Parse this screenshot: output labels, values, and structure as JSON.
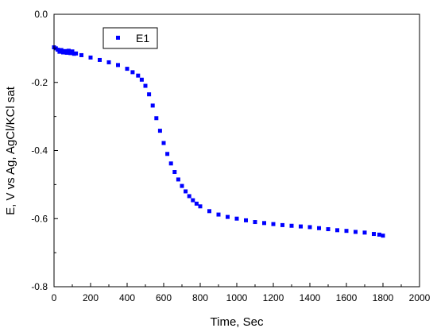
{
  "chart_data": {
    "type": "scatter",
    "title": "",
    "xlabel": "Time, Sec",
    "ylabel": "E, V vs Ag, AgCl/KCl sat",
    "xlim": [
      0,
      2000
    ],
    "ylim": [
      -0.8,
      0.0
    ],
    "x_ticks": [
      0,
      200,
      400,
      600,
      800,
      1000,
      1200,
      1400,
      1600,
      1800,
      2000
    ],
    "x_tick_labels": [
      "0",
      "200",
      "400",
      "600",
      "800",
      "1000",
      "1200",
      "1400",
      "1600",
      "1800",
      "2000"
    ],
    "y_ticks": [
      0.0,
      -0.2,
      -0.4,
      -0.6,
      -0.8
    ],
    "y_tick_labels": [
      "0.0",
      "-0.2",
      "-0.4",
      "-0.6",
      "-0.8"
    ],
    "grid": false,
    "legend_position": "top-left",
    "series": [
      {
        "name": "E1",
        "color": "#0000ff",
        "marker": "square",
        "x": [
          0,
          10,
          20,
          30,
          40,
          50,
          60,
          70,
          80,
          90,
          100,
          110,
          120,
          150,
          200,
          250,
          300,
          350,
          400,
          430,
          460,
          480,
          500,
          520,
          540,
          560,
          580,
          600,
          620,
          640,
          660,
          680,
          700,
          720,
          740,
          760,
          780,
          800,
          850,
          900,
          950,
          1000,
          1050,
          1100,
          1150,
          1200,
          1250,
          1300,
          1350,
          1400,
          1450,
          1500,
          1550,
          1600,
          1650,
          1700,
          1750,
          1780,
          1800
        ],
        "y": [
          -0.097,
          -0.1,
          -0.104,
          -0.11,
          -0.105,
          -0.112,
          -0.108,
          -0.113,
          -0.107,
          -0.114,
          -0.109,
          -0.116,
          -0.115,
          -0.12,
          -0.127,
          -0.134,
          -0.141,
          -0.149,
          -0.16,
          -0.17,
          -0.18,
          -0.192,
          -0.21,
          -0.235,
          -0.268,
          -0.305,
          -0.342,
          -0.378,
          -0.41,
          -0.438,
          -0.463,
          -0.485,
          -0.504,
          -0.52,
          -0.534,
          -0.546,
          -0.556,
          -0.564,
          -0.578,
          -0.588,
          -0.595,
          -0.6,
          -0.605,
          -0.61,
          -0.613,
          -0.616,
          -0.619,
          -0.621,
          -0.623,
          -0.625,
          -0.628,
          -0.631,
          -0.634,
          -0.636,
          -0.639,
          -0.641,
          -0.645,
          -0.647,
          -0.65
        ]
      }
    ]
  }
}
